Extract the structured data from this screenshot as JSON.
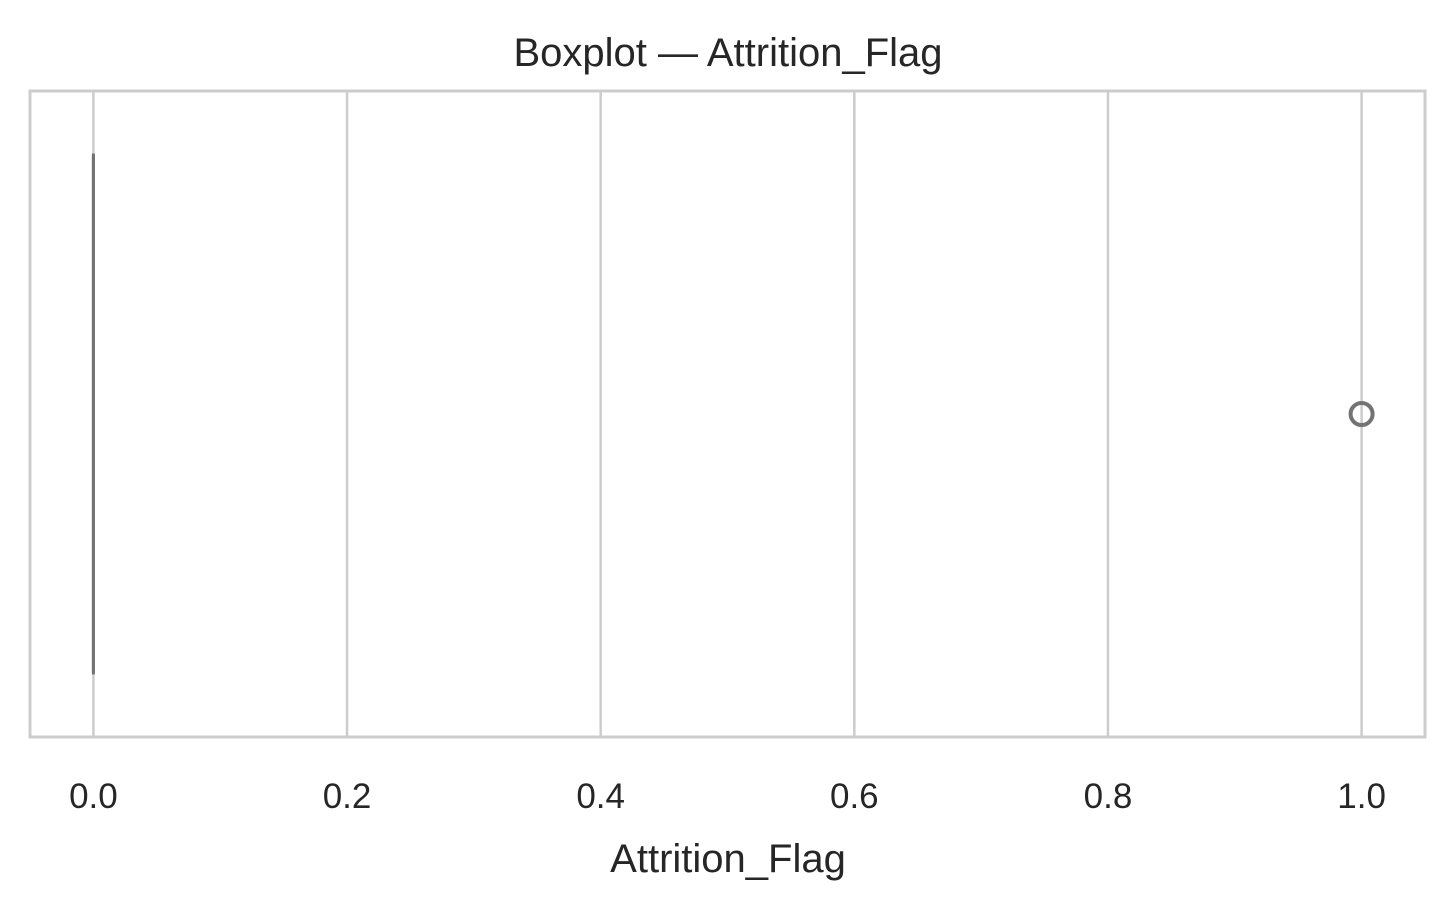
{
  "chart_data": {
    "type": "box",
    "title": "Boxplot — Attrition_Flag",
    "xlabel": "Attrition_Flag",
    "ylabel": "",
    "xlim": [
      -0.05,
      1.05
    ],
    "xticks": [
      0.0,
      0.2,
      0.4,
      0.6,
      0.8,
      1.0
    ],
    "xtick_labels": [
      "0.0",
      "0.2",
      "0.4",
      "0.6",
      "0.8",
      "1.0"
    ],
    "grid": true,
    "orientation": "horizontal",
    "box": {
      "q1": 0.0,
      "median": 0.0,
      "q3": 0.0,
      "whisker_low": 0.0,
      "whisker_high": 0.0,
      "outliers": [
        1.0
      ]
    },
    "colors": {
      "grid": "#cccccc",
      "frame": "#cccccc",
      "box_line": "#737373",
      "text": "#262626",
      "background": "#ffffff"
    }
  }
}
